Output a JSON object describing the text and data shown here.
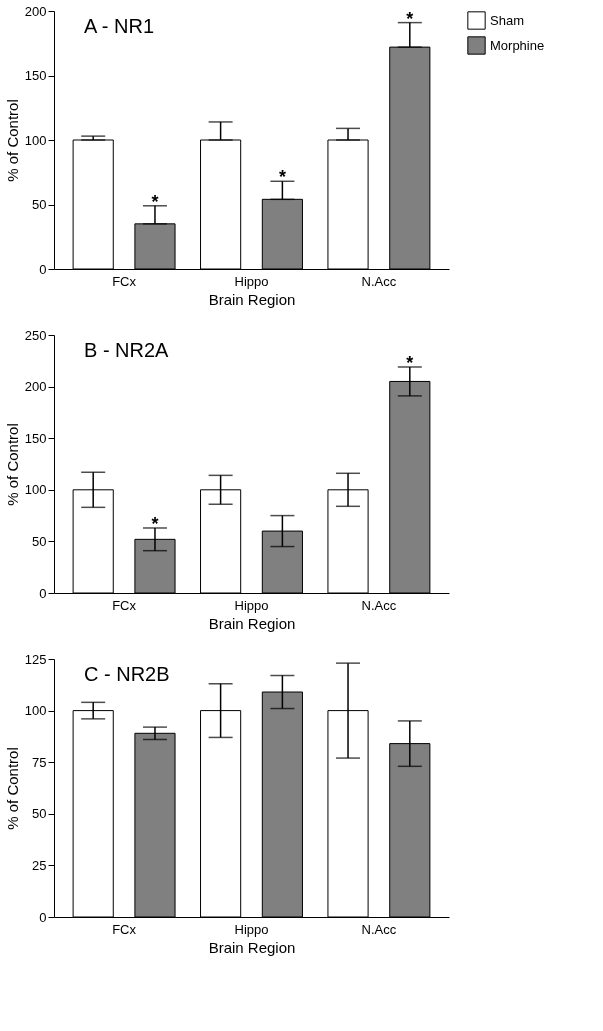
{
  "chart_data": [
    {
      "type": "bar",
      "title": "A - NR1",
      "xlabel": "Brain Region",
      "ylabel": "% of Control",
      "categories": [
        "FCx",
        "Hippo",
        "N.Acc"
      ],
      "series": [
        {
          "name": "Sham",
          "color": "#ffffff",
          "values": [
            100,
            100,
            100
          ],
          "errors": [
            [
              100,
              103
            ],
            [
              100,
              114
            ],
            [
              100,
              109
            ]
          ]
        },
        {
          "name": "Morphine",
          "color": "#808080",
          "values": [
            35,
            54,
            172
          ],
          "errors": [
            [
              35,
              49
            ],
            [
              54,
              68
            ],
            [
              172,
              191
            ]
          ],
          "value_labels": [
            "*",
            "*",
            "*"
          ]
        }
      ],
      "ylim": [
        0,
        200
      ],
      "yticks": [
        0,
        50,
        100,
        150,
        200
      ],
      "grid": false,
      "legend": "top right"
    },
    {
      "type": "bar",
      "title": "B - NR2A",
      "xlabel": "Brain Region",
      "ylabel": "% of Control",
      "categories": [
        "FCx",
        "Hippo",
        "N.Acc"
      ],
      "series": [
        {
          "name": "Sham",
          "color": "#ffffff",
          "values": [
            100,
            100,
            100
          ],
          "errors": [
            17,
            14,
            16
          ]
        },
        {
          "name": "Morphine",
          "color": "#808080",
          "values": [
            52,
            60,
            205
          ],
          "errors": [
            11,
            15,
            14
          ],
          "value_labels": [
            "*",
            null,
            "*"
          ]
        }
      ],
      "ylim": [
        0,
        250
      ],
      "yticks": [
        0,
        50,
        100,
        150,
        200,
        250
      ],
      "grid": false,
      "legend": "top right"
    },
    {
      "type": "bar",
      "title": "C - NR2B",
      "xlabel": "Brain Region",
      "ylabel": "% of Control",
      "categories": [
        "FCx",
        "Hippo",
        "N.Acc"
      ],
      "series": [
        {
          "name": "Sham",
          "color": "#ffffff",
          "values": [
            100,
            100,
            100
          ],
          "errors": [
            4,
            13,
            23
          ]
        },
        {
          "name": "Morphine",
          "color": "#808080",
          "values": [
            89,
            109,
            84
          ],
          "errors": [
            3,
            8,
            11
          ]
        }
      ],
      "ylim": [
        0,
        125
      ],
      "yticks": [
        0,
        25,
        50,
        75,
        100,
        125
      ],
      "grid": false,
      "legend": "top right"
    }
  ]
}
